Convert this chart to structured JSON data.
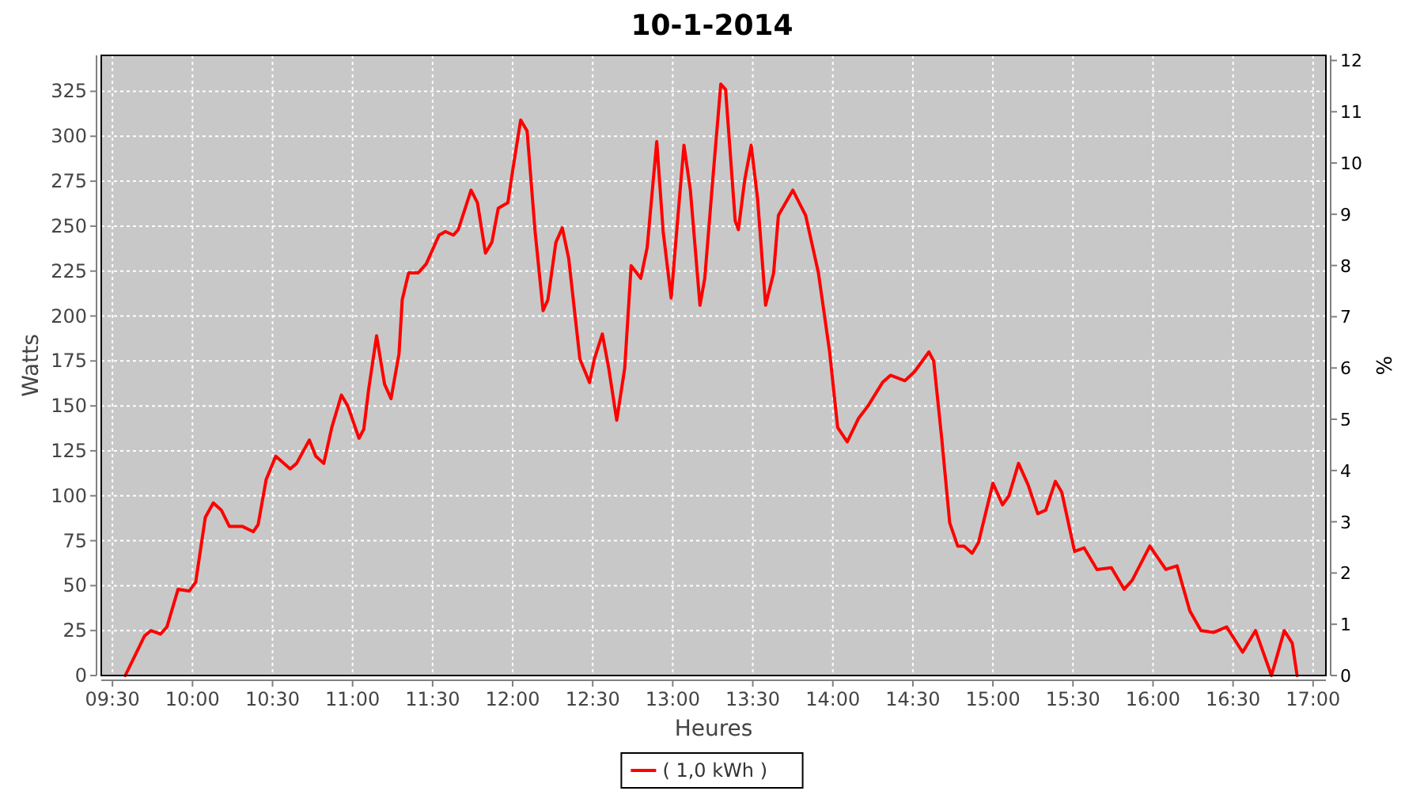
{
  "chart_data": {
    "type": "line",
    "title": "10-1-2014",
    "xlabel": "Heures",
    "ylabel": "Watts",
    "y2label": "%",
    "xlim": [
      9.43,
      17.08
    ],
    "ylim": [
      0,
      345
    ],
    "y2lim": [
      0,
      12.1
    ],
    "xticks": [
      {
        "value": 9.5,
        "label": "09:30"
      },
      {
        "value": 10,
        "label": "10:00"
      },
      {
        "value": 10.5,
        "label": "10:30"
      },
      {
        "value": 11,
        "label": "11:00"
      },
      {
        "value": 11.5,
        "label": "11:30"
      },
      {
        "value": 12,
        "label": "12:00"
      },
      {
        "value": 12.5,
        "label": "12:30"
      },
      {
        "value": 13,
        "label": "13:00"
      },
      {
        "value": 13.5,
        "label": "13:30"
      },
      {
        "value": 14,
        "label": "14:00"
      },
      {
        "value": 14.5,
        "label": "14:30"
      },
      {
        "value": 15,
        "label": "15:00"
      },
      {
        "value": 15.5,
        "label": "15:30"
      },
      {
        "value": 16,
        "label": "16:00"
      },
      {
        "value": 16.5,
        "label": "16:30"
      },
      {
        "value": 17,
        "label": "17:00"
      }
    ],
    "yticks": [
      0,
      25,
      50,
      75,
      100,
      125,
      150,
      175,
      200,
      225,
      250,
      275,
      300,
      325
    ],
    "y2ticks": [
      0,
      1,
      2,
      3,
      4,
      5,
      6,
      7,
      8,
      9,
      10,
      11,
      12
    ],
    "grid": true,
    "legend": "bottom",
    "marker": "none",
    "line_style": "solid",
    "series": [
      {
        "name": "( 1,0 kWh )",
        "color": "#ff0000",
        "x": [
          9.58,
          9.7,
          9.74,
          9.8,
          9.84,
          9.91,
          9.98,
          10.02,
          10.08,
          10.13,
          10.18,
          10.23,
          10.31,
          10.38,
          10.41,
          10.46,
          10.52,
          10.61,
          10.65,
          10.73,
          10.77,
          10.82,
          10.87,
          10.93,
          10.97,
          11.04,
          11.07,
          11.1,
          11.15,
          11.2,
          11.24,
          11.29,
          11.31,
          11.35,
          11.41,
          11.46,
          11.54,
          11.58,
          11.63,
          11.66,
          11.74,
          11.78,
          11.83,
          11.87,
          11.91,
          11.97,
          12.0,
          12.05,
          12.09,
          12.14,
          12.19,
          12.22,
          12.27,
          12.31,
          12.35,
          12.42,
          12.48,
          12.51,
          12.56,
          12.6,
          12.65,
          12.7,
          12.74,
          12.8,
          12.84,
          12.9,
          12.94,
          12.99,
          13.03,
          13.07,
          13.11,
          13.17,
          13.2,
          13.25,
          13.3,
          13.33,
          13.39,
          13.41,
          13.45,
          13.49,
          13.53,
          13.58,
          13.63,
          13.66,
          13.75,
          13.83,
          13.91,
          13.98,
          14.03,
          14.09,
          14.16,
          14.22,
          14.31,
          14.36,
          14.45,
          14.51,
          14.6,
          14.63,
          14.68,
          14.73,
          14.78,
          14.82,
          14.87,
          14.91,
          15.0,
          15.06,
          15.1,
          15.16,
          15.22,
          15.28,
          15.33,
          15.39,
          15.43,
          15.51,
          15.57,
          15.65,
          15.74,
          15.82,
          15.87,
          15.98,
          16.08,
          16.15,
          16.23,
          16.3,
          16.38,
          16.46,
          16.56,
          16.64,
          16.74,
          16.82,
          16.87,
          16.9
        ],
        "values": [
          0,
          22,
          25,
          23,
          27,
          48,
          47,
          52,
          88,
          96,
          92,
          83,
          83,
          80,
          84,
          109,
          122,
          115,
          118,
          131,
          122,
          118,
          138,
          156,
          150,
          132,
          137,
          159,
          189,
          162,
          154,
          179,
          209,
          224,
          224,
          229,
          245,
          247,
          245,
          248,
          270,
          263,
          235,
          241,
          260,
          263,
          281,
          309,
          303,
          247,
          203,
          209,
          241,
          249,
          232,
          176,
          163,
          176,
          190,
          171,
          142,
          171,
          228,
          221,
          238,
          297,
          247,
          210,
          253,
          295,
          270,
          206,
          221,
          276,
          329,
          326,
          253,
          248,
          276,
          295,
          265,
          206,
          224,
          256,
          270,
          256,
          224,
          180,
          138,
          130,
          143,
          150,
          163,
          167,
          164,
          169,
          180,
          175,
          132,
          85,
          72,
          72,
          68,
          74,
          107,
          95,
          100,
          118,
          106,
          90,
          92,
          108,
          102,
          69,
          71,
          59,
          60,
          48,
          53,
          72,
          59,
          61,
          36,
          25,
          24,
          27,
          13,
          25,
          0,
          25,
          18,
          0
        ]
      }
    ]
  }
}
